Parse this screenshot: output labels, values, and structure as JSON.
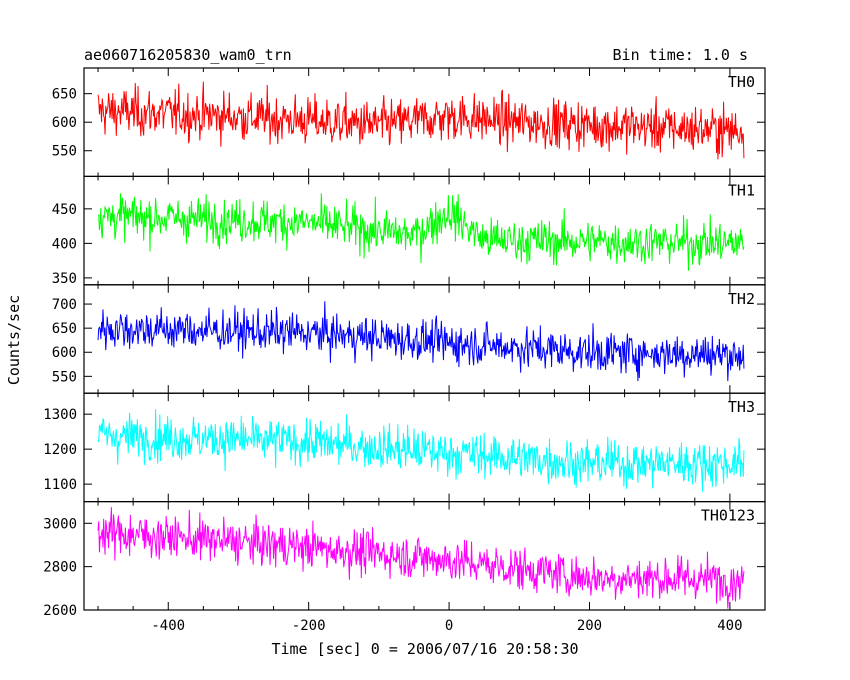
{
  "chart_data": {
    "type": "line",
    "title": "ae060716205830_wam0_trn",
    "subtitle": "Bin time: 1.0 s",
    "xlabel": "Time [sec] 0 = 2006/07/16 20:58:30",
    "ylabel": "Counts/sec",
    "xlim": [
      -520,
      450
    ],
    "xticks": [
      -400,
      -200,
      0,
      200,
      400
    ],
    "x_data_range": [
      -500,
      420
    ],
    "bin": 1.0,
    "legend": "none",
    "grid": false,
    "panels": [
      {
        "name": "TH0",
        "color": "#ff0000",
        "ylim": [
          505,
          695
        ],
        "yticks": [
          550,
          600,
          650
        ],
        "trend": [
          [
            -500,
            620
          ],
          [
            -300,
            610
          ],
          [
            -100,
            595
          ],
          [
            0,
            610
          ],
          [
            100,
            600
          ],
          [
            420,
            585
          ]
        ],
        "noise": 30
      },
      {
        "name": "TH1",
        "color": "#00ff00",
        "ylim": [
          340,
          497
        ],
        "yticks": [
          350,
          400,
          450
        ],
        "trend": [
          [
            -500,
            440
          ],
          [
            -200,
            430
          ],
          [
            -50,
            412
          ],
          [
            0,
            445
          ],
          [
            50,
            405
          ],
          [
            420,
            400
          ]
        ],
        "noise": 22
      },
      {
        "name": "TH2",
        "color": "#0000ff",
        "ylim": [
          515,
          740
        ],
        "yticks": [
          550,
          600,
          650,
          700
        ],
        "trend": [
          [
            -500,
            650
          ],
          [
            -200,
            640
          ],
          [
            0,
            620
          ],
          [
            200,
            600
          ],
          [
            420,
            595
          ]
        ],
        "noise": 30
      },
      {
        "name": "TH3",
        "color": "#00ffff",
        "ylim": [
          1050,
          1360
        ],
        "yticks": [
          1100,
          1200,
          1300
        ],
        "trend": [
          [
            -500,
            1240
          ],
          [
            -200,
            1220
          ],
          [
            0,
            1190
          ],
          [
            200,
            1160
          ],
          [
            420,
            1160
          ]
        ],
        "noise": 45
      },
      {
        "name": "TH0123",
        "color": "#ff00ff",
        "ylim": [
          2600,
          3100
        ],
        "yticks": [
          2600,
          2800,
          3000
        ],
        "trend": [
          [
            -500,
            2960
          ],
          [
            -200,
            2890
          ],
          [
            0,
            2830
          ],
          [
            100,
            2790
          ],
          [
            200,
            2750
          ],
          [
            420,
            2740
          ]
        ],
        "noise": 70
      }
    ]
  }
}
